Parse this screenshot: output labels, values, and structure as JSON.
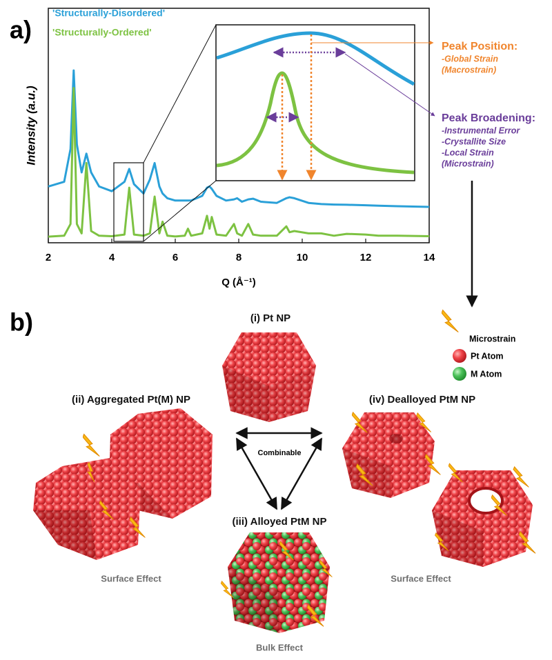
{
  "chart_data": {
    "type": "line",
    "panel_label": "a)",
    "x_label": "Q (Å⁻¹)",
    "y_label": "Intensity (a.u.)",
    "xlim": [
      2,
      14
    ],
    "xticks": [
      2,
      4,
      6,
      8,
      10,
      12,
      14
    ],
    "ylim": [
      0,
      100
    ],
    "x": [
      2,
      2.5,
      2.7,
      2.8,
      2.9,
      3.05,
      3.2,
      3.35,
      3.6,
      4.0,
      4.4,
      4.55,
      4.7,
      5.0,
      5.2,
      5.35,
      5.5,
      5.6,
      5.75,
      6.0,
      6.3,
      6.4,
      6.5,
      6.85,
      7.0,
      7.08,
      7.15,
      7.3,
      7.6,
      7.85,
      7.95,
      8.1,
      8.3,
      8.45,
      8.7,
      9.2,
      9.5,
      9.6,
      9.75,
      10.2,
      10.6,
      11.0,
      11.4,
      12.0,
      12.4,
      13.0,
      14.0
    ],
    "series": [
      {
        "name": "'Structurally-Disordered'",
        "color": "#2aa0d8",
        "values": [
          24,
          26,
          40,
          73.5,
          42,
          30,
          38,
          30,
          24,
          22,
          26,
          31.5,
          25,
          21,
          27,
          34,
          24,
          21,
          19,
          18,
          18,
          18,
          18,
          20,
          23.5,
          24,
          23,
          20,
          18,
          18.5,
          19,
          17.5,
          18.5,
          18.8,
          17.5,
          17,
          19,
          19.4,
          19,
          17,
          16.5,
          16.3,
          16.2,
          16,
          15.8,
          15.6,
          15.3
        ]
      },
      {
        "name": "'Structurally-Ordered'",
        "color": "#7dc242",
        "values": [
          2.6,
          3,
          8,
          66,
          8,
          4,
          34,
          5,
          3,
          2.8,
          3.5,
          23.5,
          3.5,
          3,
          4,
          19.7,
          4,
          9,
          3,
          2.7,
          3,
          6,
          3,
          4,
          11.5,
          6,
          11,
          3.5,
          3,
          8,
          4,
          3,
          8,
          3.5,
          3,
          3,
          7,
          4.5,
          5,
          4,
          4,
          3,
          3.8,
          3.5,
          3,
          3,
          2.8
        ]
      }
    ],
    "annotations": {
      "peak_position": {
        "title": "Peak Position:",
        "lines": [
          "-Global Strain",
          "(Macrostrain)"
        ],
        "color": "#f0852d"
      },
      "peak_broadening": {
        "title": "Peak Broadening:",
        "lines": [
          "-Instrumental Error",
          "-Crystallite Size",
          "-Local Strain",
          "(Microstrain)"
        ],
        "color": "#6a3d9a"
      }
    }
  },
  "diagram": {
    "panel_label": "b)",
    "legend": {
      "microstrain": "Microstrain",
      "pt_atom": "Pt Atom",
      "m_atom": "M Atom"
    },
    "nodes": [
      {
        "label": "(i) Pt NP"
      },
      {
        "label": "(ii) Aggregated Pt(M) NP",
        "effect": "Surface Effect"
      },
      {
        "label": "(iii) Alloyed PtM NP",
        "effect": "Bulk Effect"
      },
      {
        "label": "(iv) Dealloyed PtM NP",
        "effect": "Surface Effect"
      }
    ],
    "center_label": "Combinable"
  }
}
